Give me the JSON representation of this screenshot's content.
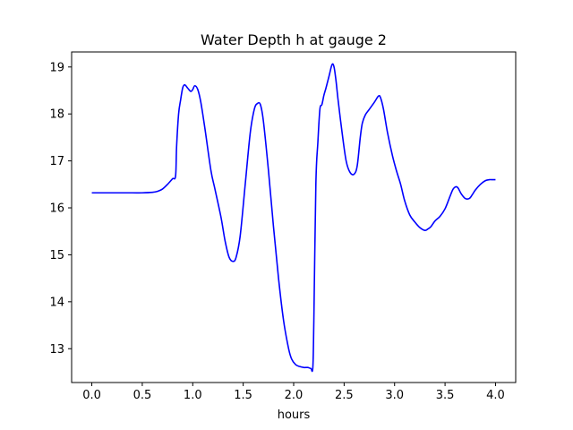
{
  "chart_data": {
    "type": "line",
    "title": "Water Depth h at gauge 2",
    "xlabel": "hours",
    "ylabel": "",
    "xlim": [
      -0.2,
      4.2
    ],
    "ylim": [
      12.28,
      19.32
    ],
    "xticks": [
      0.0,
      0.5,
      1.0,
      1.5,
      2.0,
      2.5,
      3.0,
      3.5,
      4.0
    ],
    "xtick_labels": [
      "0.0",
      "0.5",
      "1.0",
      "1.5",
      "2.0",
      "2.5",
      "3.0",
      "3.5",
      "4.0"
    ],
    "yticks": [
      13,
      14,
      15,
      16,
      17,
      18,
      19
    ],
    "ytick_labels": [
      "13",
      "14",
      "15",
      "16",
      "17",
      "18",
      "19"
    ],
    "grid": false,
    "series": [
      {
        "color": "#0000ff",
        "x": [
          0.0,
          0.2,
          0.4,
          0.5,
          0.6,
          0.65,
          0.7,
          0.75,
          0.8,
          0.83,
          0.84,
          0.86,
          0.88,
          0.9,
          0.92,
          0.95,
          0.98,
          1.0,
          1.02,
          1.05,
          1.08,
          1.12,
          1.18,
          1.22,
          1.28,
          1.32,
          1.36,
          1.4,
          1.43,
          1.47,
          1.52,
          1.57,
          1.61,
          1.64,
          1.67,
          1.7,
          1.75,
          1.8,
          1.85,
          1.9,
          1.95,
          1.98,
          2.02,
          2.06,
          2.1,
          2.14,
          2.17,
          2.19,
          2.2,
          2.22,
          2.24,
          2.26,
          2.28,
          2.3,
          2.32,
          2.35,
          2.38,
          2.4,
          2.42,
          2.44,
          2.48,
          2.52,
          2.56,
          2.6,
          2.63,
          2.66,
          2.68,
          2.71,
          2.75,
          2.8,
          2.84,
          2.86,
          2.89,
          2.93,
          2.98,
          3.02,
          3.06,
          3.1,
          3.15,
          3.2,
          3.25,
          3.3,
          3.33,
          3.36,
          3.4,
          3.45,
          3.5,
          3.55,
          3.58,
          3.61,
          3.63,
          3.66,
          3.7,
          3.74,
          3.77,
          3.8,
          3.85,
          3.9,
          3.94,
          3.97,
          4.0
        ],
        "y": [
          16.32,
          16.32,
          16.32,
          16.32,
          16.33,
          16.35,
          16.4,
          16.5,
          16.62,
          16.68,
          17.3,
          18.0,
          18.3,
          18.55,
          18.62,
          18.55,
          18.48,
          18.52,
          18.6,
          18.52,
          18.25,
          17.7,
          16.8,
          16.4,
          15.8,
          15.3,
          14.95,
          14.86,
          14.95,
          15.4,
          16.5,
          17.6,
          18.1,
          18.22,
          18.2,
          17.85,
          16.8,
          15.6,
          14.5,
          13.6,
          13.0,
          12.78,
          12.66,
          12.62,
          12.6,
          12.6,
          12.58,
          12.6,
          13.6,
          16.5,
          17.4,
          18.1,
          18.2,
          18.4,
          18.55,
          18.8,
          19.05,
          19.0,
          18.7,
          18.3,
          17.6,
          17.0,
          16.75,
          16.72,
          16.9,
          17.5,
          17.8,
          17.98,
          18.1,
          18.25,
          18.38,
          18.35,
          18.1,
          17.6,
          17.1,
          16.78,
          16.5,
          16.15,
          15.85,
          15.7,
          15.58,
          15.52,
          15.55,
          15.6,
          15.72,
          15.82,
          15.98,
          16.25,
          16.4,
          16.45,
          16.42,
          16.3,
          16.2,
          16.2,
          16.28,
          16.38,
          16.5,
          16.58,
          16.6,
          16.6,
          16.6
        ]
      }
    ]
  }
}
